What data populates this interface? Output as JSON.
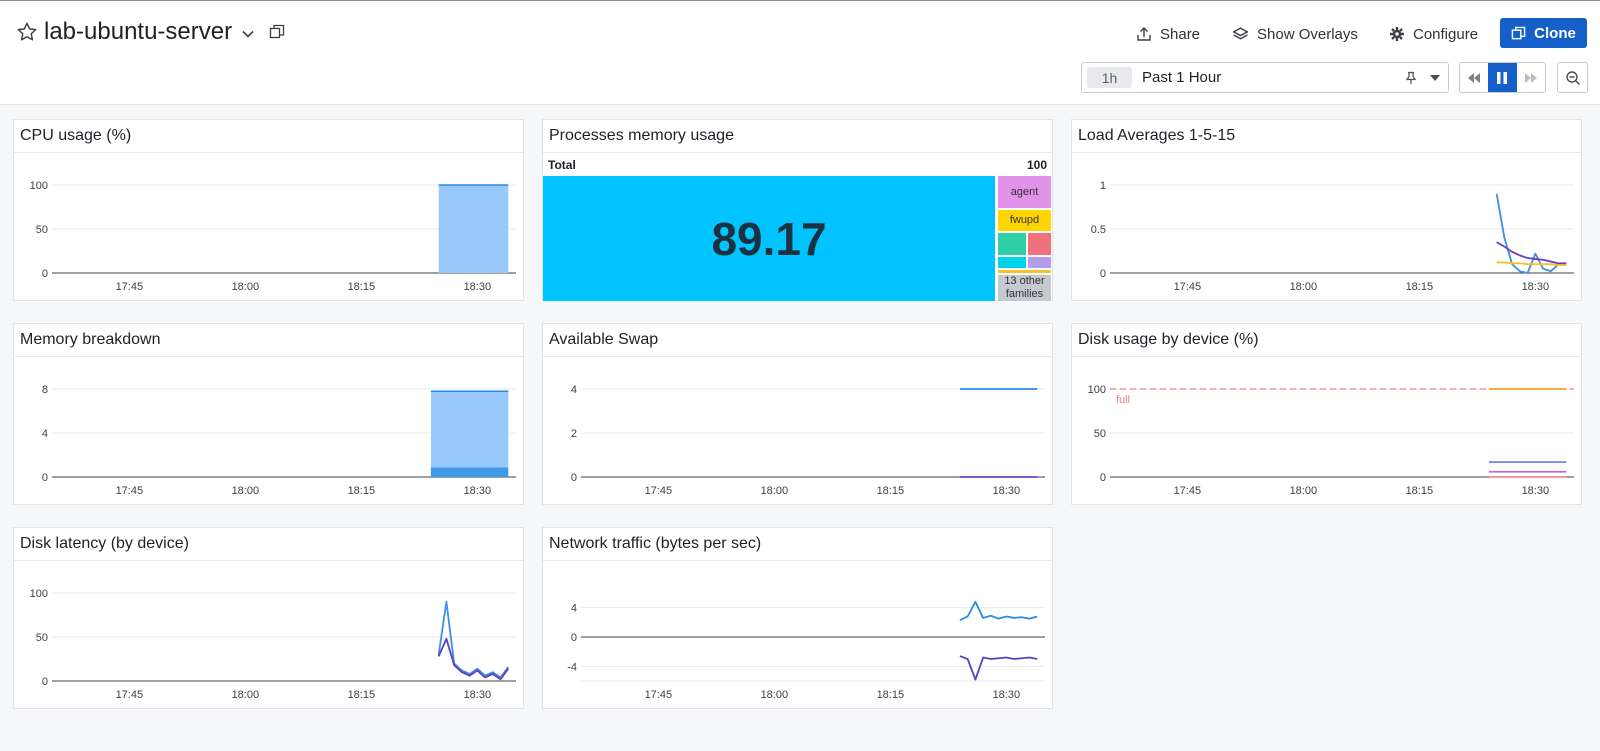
{
  "header": {
    "title": "lab-ubuntu-server",
    "share_label": "Share",
    "overlays_label": "Show Overlays",
    "configure_label": "Configure",
    "clone_label": "Clone",
    "time_chip": "1h",
    "time_label": "Past 1 Hour"
  },
  "widgets": {
    "cpu": {
      "title": "CPU usage (%)"
    },
    "procmem": {
      "title": "Processes memory usage"
    },
    "load": {
      "title": "Load Averages 1-5-15"
    },
    "membreak": {
      "title": "Memory breakdown"
    },
    "swap": {
      "title": "Available Swap"
    },
    "disk": {
      "title": "Disk usage by device (%)"
    },
    "latency": {
      "title": "Disk latency (by device)"
    },
    "net": {
      "title": "Network traffic (bytes per sec)"
    }
  },
  "treemap": {
    "total_label": "Total",
    "total_value": "100",
    "main_value": "89.17",
    "cells": [
      {
        "label": "agent",
        "color": "#e092e8"
      },
      {
        "label": "fwupd",
        "color": "#ffd500"
      },
      {
        "label": "",
        "color": "#2ecfa6"
      },
      {
        "label": "",
        "color": "#f0707b"
      },
      {
        "label": "",
        "color": "#00d2e8"
      },
      {
        "label": "",
        "color": "#b69aeb"
      },
      {
        "label": "",
        "color": "#f2c230"
      },
      {
        "label": "13 other families",
        "color": "#c7c9d1"
      }
    ]
  },
  "time_ticks": [
    "17:45",
    "18:00",
    "18:15",
    "18:30"
  ],
  "chart_data": [
    {
      "type": "area",
      "widget": "cpu",
      "title": "CPU usage (%)",
      "x": [
        "18:25",
        "18:34"
      ],
      "series": [
        {
          "color": "#99c8fa",
          "values": [
            100,
            100
          ]
        }
      ],
      "y_ticks": [
        0,
        50,
        100
      ],
      "ylim": [
        0,
        100
      ]
    },
    {
      "type": "line",
      "widget": "load",
      "title": "Load Averages 1-5-15",
      "x": [
        "18:25",
        "18:26",
        "18:27",
        "18:28",
        "18:29",
        "18:30",
        "18:31",
        "18:32",
        "18:33",
        "18:34"
      ],
      "series": [
        {
          "color": "#3d8fe6",
          "values": [
            0.9,
            0.4,
            0.1,
            0.02,
            0.0,
            0.22,
            0.05,
            0.02,
            0.1,
            0.1
          ]
        },
        {
          "color": "#6b3fc0",
          "values": [
            0.35,
            0.3,
            0.24,
            0.2,
            0.17,
            0.16,
            0.15,
            0.13,
            0.11,
            0.11
          ]
        },
        {
          "color": "#f5c02a",
          "values": [
            0.12,
            0.12,
            0.11,
            0.11,
            0.1,
            0.1,
            0.1,
            0.1,
            0.09,
            0.09
          ]
        }
      ],
      "y_ticks": [
        0,
        0.5,
        1
      ],
      "ylim": [
        0,
        1
      ]
    },
    {
      "type": "area",
      "widget": "membreak",
      "title": "Memory breakdown",
      "x": [
        "18:24",
        "18:34"
      ],
      "series": [
        {
          "color": "#99c8fa",
          "values": [
            7.8,
            7.8
          ]
        },
        {
          "color": "#3f9be8",
          "values": [
            0.8,
            0.8
          ]
        }
      ],
      "y_ticks": [
        0,
        4,
        8
      ],
      "ylim": [
        0,
        8
      ]
    },
    {
      "type": "line",
      "widget": "swap",
      "title": "Available Swap",
      "x": [
        "18:24",
        "18:34"
      ],
      "series": [
        {
          "color": "#2a8ae6",
          "values": [
            4,
            4
          ]
        },
        {
          "color": "#6b3fc0",
          "values": [
            0,
            0
          ]
        }
      ],
      "y_ticks": [
        0,
        2,
        4
      ],
      "ylim": [
        0,
        4
      ]
    },
    {
      "type": "line",
      "widget": "disk",
      "title": "Disk usage by device (%)",
      "x": [
        "18:24",
        "18:34"
      ],
      "series": [
        {
          "color": "#f5a623",
          "values": [
            100,
            100
          ]
        },
        {
          "color": "#7a8de8",
          "values": [
            17,
            17
          ]
        },
        {
          "color": "#b06ee0",
          "values": [
            6,
            6
          ]
        },
        {
          "color": "#f08a8a",
          "values": [
            0,
            0
          ]
        }
      ],
      "markers": [
        {
          "label": "full",
          "value": 100,
          "color": "#f27c7c"
        }
      ],
      "y_ticks": [
        0,
        50,
        100
      ],
      "ylim": [
        0,
        100
      ]
    },
    {
      "type": "line",
      "widget": "latency",
      "title": "Disk latency (by device)",
      "x": [
        "18:25",
        "18:26",
        "18:27",
        "18:28",
        "18:29",
        "18:30",
        "18:31",
        "18:32",
        "18:33",
        "18:34"
      ],
      "series": [
        {
          "color": "#3d8fe6",
          "values": [
            30,
            90,
            20,
            12,
            8,
            14,
            6,
            10,
            4,
            16
          ]
        },
        {
          "color": "#5b3fc0",
          "values": [
            28,
            48,
            18,
            10,
            6,
            12,
            4,
            8,
            2,
            14
          ]
        }
      ],
      "y_ticks": [
        0,
        50,
        100
      ],
      "ylim": [
        0,
        100
      ]
    },
    {
      "type": "line",
      "widget": "net",
      "title": "Network traffic (bytes per sec)",
      "x": [
        "18:24",
        "18:25",
        "18:26",
        "18:27",
        "18:28",
        "18:29",
        "18:30",
        "18:31",
        "18:32",
        "18:33",
        "18:34"
      ],
      "series": [
        {
          "color": "#2a8ae6",
          "values": [
            2.3,
            2.8,
            4.8,
            2.6,
            2.9,
            2.5,
            2.8,
            2.6,
            2.7,
            2.5,
            2.8
          ]
        },
        {
          "color": "#5b3fc0",
          "values": [
            -2.6,
            -3.0,
            -5.8,
            -2.8,
            -3.0,
            -2.9,
            -2.8,
            -3.0,
            -2.9,
            -2.8,
            -3.0
          ]
        }
      ],
      "y_ticks": [
        -4,
        0,
        4
      ],
      "ylim": [
        -6,
        6
      ]
    }
  ]
}
